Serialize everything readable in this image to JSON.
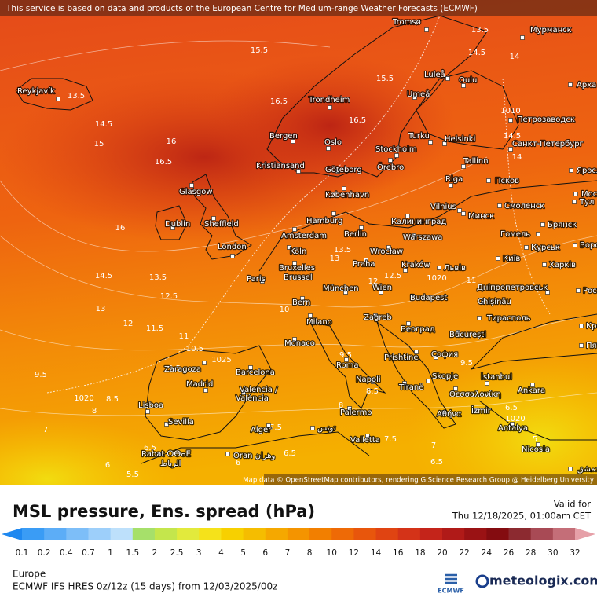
{
  "notice": "This service is based on data and products of the European Centre for Medium-range Weather Forecasts (ECMWF)",
  "map": {
    "cities": [
      "Tromsø",
      "Мурманск",
      "Luleå",
      "Oulu",
      "Арха",
      "Reykjavík",
      "Trondheim",
      "Umeå",
      "Петрозаводск",
      "Bergen",
      "Oslo",
      "Turku",
      "Helsinki",
      "Санкт-Петербург",
      "Stockholm",
      "Kristiansand",
      "Göteborg",
      "Örebro",
      "Tallinn",
      "Яросл",
      "Glasgow",
      "Riga",
      "Псков",
      "København",
      "Москва",
      "Vilnius",
      "Смоленск",
      "Минск",
      "Тул",
      "Hamburg",
      "Калининград",
      "Брянск",
      "Dublin",
      "Sheffield",
      "Berlin",
      "Amsterdam",
      "Warszawa",
      "Гомель",
      "Ворон",
      "London",
      "Köln",
      "Wrocław",
      "Курськ",
      "Київ",
      "Харків",
      "Bruxelles",
      "Praha",
      "Kraków",
      "Львів",
      "Brussel",
      "Paris",
      "Дніпропетровськ",
      "München",
      "Wien",
      "Росто",
      "Chișinău",
      "Bern",
      "Budapest",
      "Тирасполь",
      "Milano",
      "Zagreb",
      "Београд",
      "Красно",
      "București",
      "Monaco",
      "Пяти",
      "Prishtine",
      "София",
      "Zaragoza",
      "Barcelona",
      "Roma",
      "İstanbul",
      "Skopje",
      "Madrid",
      "Napoli",
      "Tiranë",
      "Θεσσαλονίκη",
      "Ankara",
      "Valencia /",
      "València",
      "İzmir",
      "Lisboa",
      "Palermo",
      "Αθήνα",
      "Antalya",
      "Sevilla",
      "Alger",
      "تونس",
      "Valletta",
      "Nicosia",
      "Rabat ⵔⴱⴰⵟ",
      "الرباط",
      "Oran وهران",
      "دمشق"
    ],
    "contour_labels": [
      15.5,
      13.5,
      14.5,
      14,
      13.5,
      15.5,
      16.5,
      14.5,
      15,
      16,
      16.5,
      16.5,
      1010,
      14.5,
      14,
      16,
      14.5,
      13.5,
      12.5,
      13,
      12,
      11.5,
      11,
      10.5,
      9.5,
      9.5,
      1025,
      1020,
      8.5,
      8,
      7,
      6,
      5.5,
      6.5,
      7.5,
      6.5,
      6,
      7.5,
      7,
      6.5,
      6.5,
      1020,
      5,
      13.5,
      13,
      12.5,
      12,
      11,
      10,
      10,
      9.5,
      9.5,
      8.5,
      8,
      1020
    ],
    "attribution": "Map data © OpenStreetMap contributors, rendering GIScience Research Group @ Heidelberg University"
  },
  "legend": {
    "title": "MSL pressure, Ens. spread (hPa)",
    "valid_label": "Valid for",
    "valid_time": "Thu 12/18/2025, 01:00am CET",
    "colorbar": {
      "ticks": [
        0.1,
        0.2,
        0.4,
        0.7,
        1,
        1.5,
        2,
        2.5,
        3,
        4,
        5,
        6,
        7,
        8,
        10,
        12,
        14,
        16,
        18,
        20,
        22,
        24,
        26,
        28,
        30,
        32
      ],
      "colors": [
        "#1e88f0",
        "#3a9cf5",
        "#5cadf7",
        "#7dbef8",
        "#9dcffa",
        "#bde0fb",
        "#a6e06a",
        "#c4e64c",
        "#e2ea3c",
        "#f5e21a",
        "#f7d000",
        "#f5bd00",
        "#f5a800",
        "#f49400",
        "#f27f00",
        "#ee6a06",
        "#e8560c",
        "#e04412",
        "#d43318",
        "#c4241a",
        "#b01a18",
        "#9a1214",
        "#840c10",
        "#8c2a30",
        "#a84a55",
        "#c46e78",
        "#e6a0a8"
      ]
    }
  },
  "footer": {
    "region": "Europe",
    "model": "ECMWF IFS HRES 0z/12z (15 days) from 12/03/2025/00z",
    "ecmwf_logo": "ECMWF",
    "brand": "meteologix.com"
  }
}
